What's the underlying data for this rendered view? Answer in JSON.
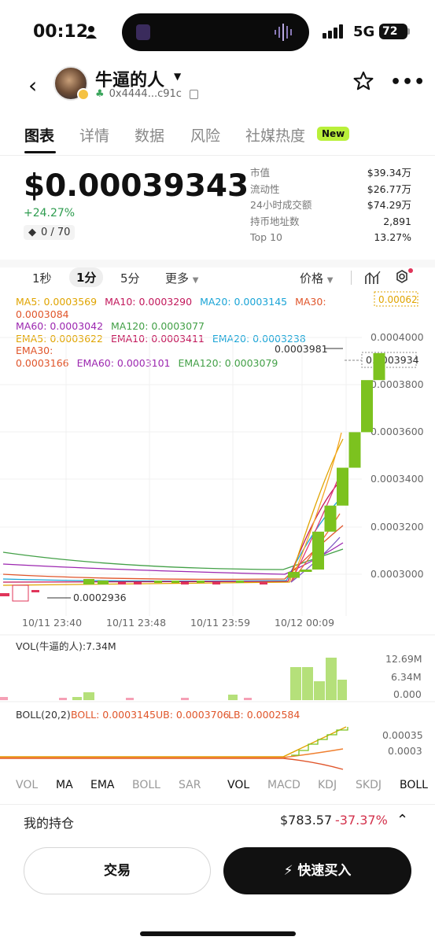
{
  "status": {
    "time": "00:12",
    "network": "5G",
    "battery": "72"
  },
  "header": {
    "token_name": "牛逼的人",
    "address": "0x4444...c91c"
  },
  "tabs": [
    {
      "label": "图表",
      "active": true
    },
    {
      "label": "详情"
    },
    {
      "label": "数据"
    },
    {
      "label": "风险"
    },
    {
      "label": "社媒热度"
    }
  ],
  "new_badge": "New",
  "price": {
    "value": "$0.00039343",
    "change": "+24.27%",
    "holders_score": "0 / 70"
  },
  "stats": [
    {
      "k": "市值",
      "v": "$39.34万"
    },
    {
      "k": "流动性",
      "v": "$26.77万"
    },
    {
      "k": "24小时成交额",
      "v": "$74.29万"
    },
    {
      "k": "持币地址数",
      "v": "2,891"
    },
    {
      "k": "Top 10",
      "v": "13.27%"
    }
  ],
  "toolbar": {
    "tf1": "1秒",
    "tf2": "1分",
    "tf3": "5分",
    "more": "更多",
    "price_mode": "价格"
  },
  "ma_legend": {
    "ma5": "MA5: 0.0003569",
    "ma10": "MA10: 0.0003290",
    "ma20": "MA20: 0.0003145",
    "ma30": "MA30: 0.0003084",
    "ma60": "MA60: 0.0003042",
    "ma120": "MA120: 0.0003077",
    "ema5": "EMA5: 0.0003622",
    "ema10": "EMA10: 0.0003411",
    "ema20": "EMA20: 0.0003238",
    "ema30": "EMA30:",
    "ema30_val": "0.0003166",
    "ema60": "EMA60: 0.0003101",
    "ema120": "EMA120: 0.0003079"
  },
  "chart_data": {
    "type": "candlestick",
    "y_ticks": [
      "0.0004000",
      "0.0003800",
      "0.0003600",
      "0.0003400",
      "0.0003200",
      "0.0003000"
    ],
    "top_label": "0.00062",
    "current_label": "0.0003934",
    "high_label": "0.0003981",
    "low_label": "0.0002936",
    "x_labels": [
      "10/11 23:40",
      "10/11 23:48",
      "10/11 23:59",
      "10/12 00:09"
    ],
    "ylim": [
      0.000292,
      0.00041
    ],
    "last_candles": [
      {
        "open": 0.0002985,
        "close": 0.000301
      },
      {
        "open": 0.000301,
        "close": 0.000302
      },
      {
        "open": 0.000302,
        "close": 0.000318
      },
      {
        "open": 0.000318,
        "close": 0.000329
      },
      {
        "open": 0.000329,
        "close": 0.000345
      },
      {
        "open": 0.000345,
        "close": 0.00036
      },
      {
        "open": 0.00036,
        "close": 0.000382
      },
      {
        "open": 0.000382,
        "close": 0.0003934
      }
    ],
    "volume": {
      "label": "VOL(牛逼的人):7.34M",
      "ticks": [
        "12.69M",
        "6.34M",
        "0.000"
      ]
    },
    "boll": {
      "label": "BOLL(20,2)",
      "boll": "BOLL: 0.0003145",
      "ub": "UB: 0.0003706",
      "lb": "LB: 0.0002584",
      "ticks": [
        "0.00035",
        "0.0003"
      ]
    }
  },
  "indicator_tabs": [
    "VOL",
    "MA",
    "EMA",
    "BOLL",
    "SAR",
    "VOL",
    "MACD",
    "KDJ",
    "SKDJ",
    "BOLL"
  ],
  "holding": {
    "label": "我的持仓",
    "value": "$783.57",
    "pct": "-37.37%"
  },
  "buttons": {
    "trade": "交易",
    "quick_buy": "快速买入"
  },
  "colors": {
    "up": "#7cc21f",
    "down": "#e0355a",
    "accent_new": "#b9f03a"
  }
}
